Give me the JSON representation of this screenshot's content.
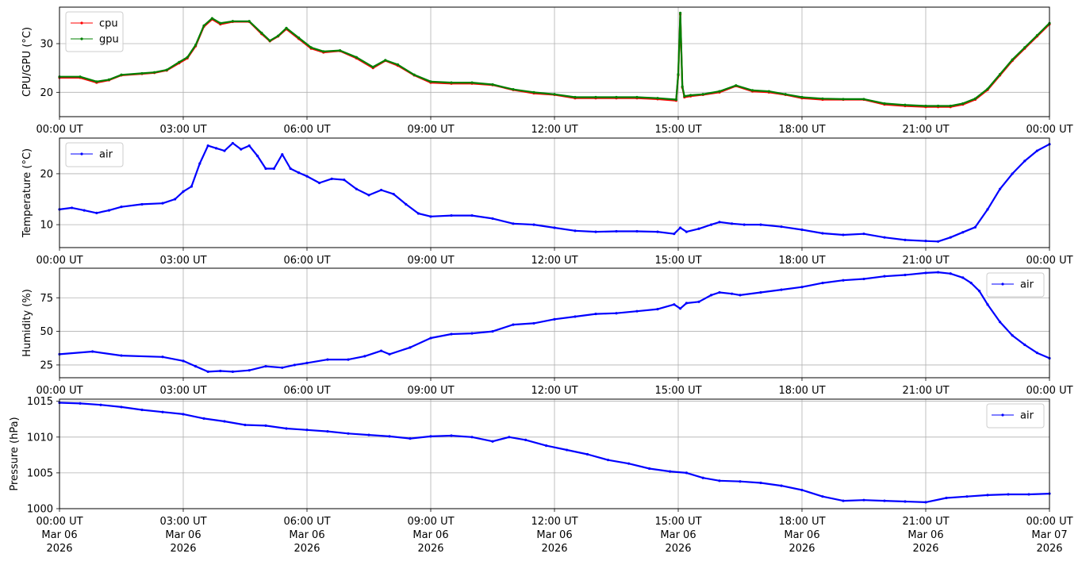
{
  "x_tick_labels": [
    "00:00 UT",
    "03:00 UT",
    "06:00 UT",
    "09:00 UT",
    "12:00 UT",
    "15:00 UT",
    "18:00 UT",
    "21:00 UT",
    "00:00 UT"
  ],
  "x_tick_date_lines": [
    [
      "Mar 06",
      "2026"
    ],
    [
      "Mar 06",
      "2026"
    ],
    [
      "Mar 06",
      "2026"
    ],
    [
      "Mar 06",
      "2026"
    ],
    [
      "Mar 06",
      "2026"
    ],
    [
      "Mar 06",
      "2026"
    ],
    [
      "Mar 06",
      "2026"
    ],
    [
      "Mar 06",
      "2026"
    ],
    [
      "Mar 07",
      "2026"
    ]
  ],
  "chart_data": [
    {
      "type": "line",
      "ylabel": "CPU/GPU (°C)",
      "ylim": [
        15,
        37.5
      ],
      "yticks": [
        20,
        30
      ],
      "xlim": [
        0,
        24
      ],
      "grid": true,
      "legend": "top-left",
      "series": [
        {
          "name": "cpu",
          "color": "#ff0000",
          "x": [
            0,
            0.5,
            0.9,
            1.2,
            1.5,
            2.0,
            2.3,
            2.6,
            2.9,
            3.1,
            3.3,
            3.5,
            3.7,
            3.9,
            4.2,
            4.6,
            4.9,
            5.1,
            5.3,
            5.5,
            5.8,
            6.1,
            6.4,
            6.8,
            7.2,
            7.6,
            7.9,
            8.2,
            8.6,
            9.0,
            9.5,
            10.0,
            10.5,
            11.0,
            11.5,
            12.0,
            12.5,
            13.0,
            13.5,
            14.0,
            14.5,
            14.95,
            15.0,
            15.05,
            15.1,
            15.15,
            15.3,
            15.6,
            16.0,
            16.4,
            16.8,
            17.2,
            17.6,
            18.0,
            18.5,
            19.0,
            19.5,
            20.0,
            20.5,
            21.0,
            21.3,
            21.6,
            21.9,
            22.2,
            22.5,
            22.8,
            23.1,
            23.4,
            23.7,
            24
          ],
          "values": [
            23,
            23,
            22,
            22.5,
            23.5,
            23.8,
            24,
            24.5,
            26,
            27,
            29.5,
            33.5,
            35,
            34,
            34.5,
            34.5,
            32,
            30.5,
            31.5,
            33,
            31,
            29,
            28.2,
            28.5,
            27,
            25,
            26.5,
            25.5,
            23.5,
            22,
            21.8,
            21.8,
            21.5,
            20.5,
            19.8,
            19.5,
            18.8,
            18.8,
            18.8,
            18.8,
            18.6,
            18.3,
            23.5,
            36,
            21,
            19,
            19.2,
            19.5,
            20,
            21.3,
            20.2,
            20,
            19.5,
            18.8,
            18.5,
            18.5,
            18.5,
            17.5,
            17.2,
            17,
            17,
            17,
            17.5,
            18.5,
            20.5,
            23.5,
            26.5,
            29,
            31.5,
            34
          ]
        },
        {
          "name": "gpu",
          "color": "#008000",
          "x": [
            0,
            0.5,
            0.9,
            1.2,
            1.5,
            2.0,
            2.3,
            2.6,
            2.9,
            3.1,
            3.3,
            3.5,
            3.7,
            3.9,
            4.2,
            4.6,
            4.9,
            5.1,
            5.3,
            5.5,
            5.8,
            6.1,
            6.4,
            6.8,
            7.2,
            7.6,
            7.9,
            8.2,
            8.6,
            9.0,
            9.5,
            10.0,
            10.5,
            11.0,
            11.5,
            12.0,
            12.5,
            13.0,
            13.5,
            14.0,
            14.5,
            14.95,
            15.0,
            15.05,
            15.1,
            15.15,
            15.3,
            15.6,
            16.0,
            16.4,
            16.8,
            17.2,
            17.6,
            18.0,
            18.5,
            19.0,
            19.5,
            20.0,
            20.5,
            21.0,
            21.3,
            21.6,
            21.9,
            22.2,
            22.5,
            22.8,
            23.1,
            23.4,
            23.7,
            24
          ],
          "values": [
            23.2,
            23.2,
            22.2,
            22.6,
            23.6,
            23.9,
            24.1,
            24.6,
            26.2,
            27.2,
            29.7,
            33.7,
            35.2,
            34.2,
            34.6,
            34.6,
            32.2,
            30.6,
            31.6,
            33.2,
            31.2,
            29.2,
            28.4,
            28.6,
            27.2,
            25.2,
            26.6,
            25.7,
            23.6,
            22.2,
            22,
            22,
            21.6,
            20.6,
            20,
            19.6,
            19,
            19,
            19,
            19,
            18.8,
            18.5,
            23.7,
            36.3,
            21.2,
            19.2,
            19.4,
            19.6,
            20.2,
            21.4,
            20.4,
            20.2,
            19.6,
            19,
            18.7,
            18.6,
            18.6,
            17.7,
            17.4,
            17.2,
            17.2,
            17.2,
            17.7,
            18.7,
            20.7,
            23.7,
            26.7,
            29.2,
            31.7,
            34.2
          ]
        }
      ]
    },
    {
      "type": "line",
      "ylabel": "Temperature (°C)",
      "ylim": [
        5.5,
        27
      ],
      "yticks": [
        10,
        20
      ],
      "xlim": [
        0,
        24
      ],
      "grid": true,
      "legend": "top-left",
      "series": [
        {
          "name": "air",
          "color": "#0000ff",
          "x": [
            0,
            0.3,
            0.6,
            0.9,
            1.2,
            1.5,
            2.0,
            2.5,
            2.8,
            3.0,
            3.2,
            3.4,
            3.6,
            3.8,
            4.0,
            4.2,
            4.4,
            4.6,
            4.8,
            5.0,
            5.2,
            5.4,
            5.6,
            5.8,
            6.0,
            6.3,
            6.6,
            6.9,
            7.2,
            7.5,
            7.8,
            8.1,
            8.4,
            8.7,
            9.0,
            9.5,
            10.0,
            10.5,
            11.0,
            11.5,
            12.0,
            12.5,
            13.0,
            13.5,
            14.0,
            14.5,
            14.9,
            15.05,
            15.2,
            15.5,
            15.8,
            16.0,
            16.3,
            16.6,
            17.0,
            17.5,
            18.0,
            18.5,
            19.0,
            19.5,
            20.0,
            20.5,
            21.0,
            21.3,
            21.6,
            21.9,
            22.2,
            22.5,
            22.8,
            23.1,
            23.4,
            23.7,
            24
          ],
          "values": [
            13,
            13.3,
            12.8,
            12.3,
            12.8,
            13.5,
            14,
            14.2,
            15,
            16.5,
            17.5,
            22,
            25.5,
            25,
            24.5,
            26,
            24.8,
            25.5,
            23.5,
            21,
            21,
            23.8,
            21,
            20.2,
            19.5,
            18.2,
            19,
            18.8,
            17,
            15.8,
            16.8,
            16,
            14,
            12.2,
            11.6,
            11.8,
            11.8,
            11.2,
            10.2,
            10,
            9.4,
            8.8,
            8.6,
            8.7,
            8.7,
            8.6,
            8.2,
            9.4,
            8.6,
            9.2,
            10,
            10.5,
            10.2,
            10,
            10,
            9.6,
            9,
            8.3,
            8,
            8.2,
            7.5,
            7,
            6.8,
            6.7,
            7.5,
            8.5,
            9.5,
            13,
            17,
            20,
            22.5,
            24.5,
            25.8
          ]
        }
      ]
    },
    {
      "type": "line",
      "ylabel": "Humidity (%)",
      "ylim": [
        15.5,
        97
      ],
      "yticks": [
        25,
        50,
        75
      ],
      "xlim": [
        0,
        24
      ],
      "grid": true,
      "legend": "top-right",
      "series": [
        {
          "name": "air",
          "color": "#0000ff",
          "x": [
            0,
            0.8,
            1.5,
            2.5,
            3.0,
            3.3,
            3.6,
            3.9,
            4.2,
            4.6,
            5.0,
            5.4,
            5.7,
            6.0,
            6.5,
            7.0,
            7.4,
            7.8,
            8.0,
            8.5,
            9.0,
            9.5,
            10.0,
            10.5,
            11.0,
            11.5,
            12.0,
            12.5,
            13.0,
            13.5,
            14.0,
            14.5,
            14.9,
            15.05,
            15.2,
            15.5,
            15.8,
            16.0,
            16.3,
            16.5,
            17.0,
            17.5,
            18.0,
            18.5,
            19.0,
            19.5,
            20.0,
            20.5,
            21.0,
            21.3,
            21.6,
            21.9,
            22.1,
            22.3,
            22.5,
            22.8,
            23.1,
            23.4,
            23.7,
            24
          ],
          "values": [
            33,
            35,
            32,
            31,
            28,
            24,
            20,
            20.5,
            20,
            21,
            24,
            23,
            25,
            26.5,
            29,
            29,
            31.5,
            35.5,
            33,
            38,
            45,
            48,
            48.5,
            50,
            55,
            56,
            59,
            61,
            63,
            63.5,
            65,
            66.5,
            70,
            67,
            71,
            72,
            77,
            79,
            78,
            77,
            79,
            81,
            83,
            86,
            88,
            89,
            91,
            92,
            93.5,
            94,
            93,
            90,
            86,
            80,
            70,
            57,
            47,
            40,
            34,
            30
          ]
        }
      ]
    },
    {
      "type": "line",
      "ylabel": "Pressure (hPa)",
      "ylim": [
        1000,
        1015.3
      ],
      "yticks": [
        1000,
        1005,
        1010,
        1015
      ],
      "xlim": [
        0,
        24
      ],
      "grid": true,
      "legend": "top-right",
      "series": [
        {
          "name": "air",
          "color": "#0000ff",
          "x": [
            0,
            0.5,
            1.0,
            1.5,
            2.0,
            2.5,
            3.0,
            3.5,
            4.0,
            4.5,
            5.0,
            5.5,
            6.0,
            6.5,
            7.0,
            7.5,
            8.0,
            8.5,
            9.0,
            9.5,
            10.0,
            10.5,
            10.9,
            11.3,
            11.8,
            12.3,
            12.8,
            13.3,
            13.8,
            14.3,
            14.8,
            15.2,
            15.6,
            16.0,
            16.5,
            17.0,
            17.5,
            18.0,
            18.5,
            19.0,
            19.5,
            20.0,
            20.5,
            21.0,
            21.5,
            22.0,
            22.5,
            23.0,
            23.5,
            24
          ],
          "values": [
            1014.8,
            1014.7,
            1014.5,
            1014.2,
            1013.8,
            1013.5,
            1013.2,
            1012.6,
            1012.2,
            1011.7,
            1011.6,
            1011.2,
            1011,
            1010.8,
            1010.5,
            1010.3,
            1010.1,
            1009.8,
            1010.1,
            1010.2,
            1010,
            1009.4,
            1010,
            1009.6,
            1008.8,
            1008.2,
            1007.6,
            1006.8,
            1006.3,
            1005.6,
            1005.2,
            1005,
            1004.3,
            1003.9,
            1003.8,
            1003.6,
            1003.2,
            1002.6,
            1001.7,
            1001.1,
            1001.2,
            1001.1,
            1001,
            1000.9,
            1001.5,
            1001.7,
            1001.9,
            1002,
            1002,
            1002.1
          ]
        }
      ]
    }
  ]
}
